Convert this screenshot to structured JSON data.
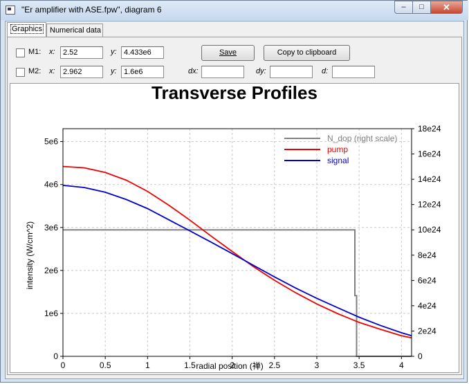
{
  "window": {
    "title": "\"Er amplifier with ASE.fpw\", diagram 6",
    "btn_min": "–",
    "btn_max": "□",
    "btn_close": "✕"
  },
  "tabs": [
    {
      "label": "Graphics"
    },
    {
      "label": "Numerical data"
    }
  ],
  "markers": {
    "m1": {
      "label": "M1:",
      "x_label": "x:",
      "x": "2.52",
      "y_label": "y:",
      "y": "4.433e6"
    },
    "m2": {
      "label": "M2:",
      "x_label": "x:",
      "x": "2.962",
      "y_label": "y:",
      "y": "1.6e6"
    },
    "dx_label": "dx:",
    "dy_label": "dy:",
    "d_label": "d:",
    "dx": "",
    "dy": "",
    "d": ""
  },
  "buttons": {
    "save": "Save",
    "copy": "Copy to clipboard"
  },
  "chart_data": {
    "type": "line",
    "title": "Transverse Profiles",
    "xlabel": "radial position (禅)",
    "ylabel": "intensity (W/cm^2)",
    "xlim": [
      0,
      4.12
    ],
    "ylim": [
      0,
      5300000.0
    ],
    "ylim_right": [
      0,
      1.8e+25
    ],
    "x_ticks": [
      "0",
      "0.5",
      "1",
      "1.5",
      "2",
      "2.5",
      "3",
      "3.5",
      "4"
    ],
    "x_tick_values": [
      0,
      0.5,
      1,
      1.5,
      2,
      2.5,
      3,
      3.5,
      4
    ],
    "y_ticks": [
      "0",
      "1e6",
      "2e6",
      "3e6",
      "4e6",
      "5e6"
    ],
    "y_tick_values": [
      0,
      1000000.0,
      2000000.0,
      3000000.0,
      4000000.0,
      5000000.0
    ],
    "y2_ticks": [
      "0",
      "2e24",
      "4e24",
      "6e24",
      "8e24",
      "10e24",
      "12e24",
      "14e24",
      "16e24",
      "18e24"
    ],
    "y2_tick_values": [
      0,
      2e+24,
      4e+24,
      6e+24,
      8e+24,
      1e+25,
      1.2e+25,
      1.4e+25,
      1.6e+25,
      1.8e+25
    ],
    "grid": true,
    "legend_position": "top-right",
    "series": [
      {
        "name": "N_dop (right scale)",
        "color": "#808080",
        "axis": "right",
        "x": [
          0,
          3.45,
          3.45,
          3.47,
          3.47,
          4.12
        ],
        "y": [
          1e+25,
          1e+25,
          4.8e+24,
          4.8e+24,
          0,
          0
        ]
      },
      {
        "name": "pump",
        "color": "#ee0000",
        "axis": "left",
        "x": [
          0,
          0.25,
          0.5,
          0.75,
          1,
          1.25,
          1.5,
          1.75,
          2,
          2.25,
          2.5,
          2.75,
          3,
          3.25,
          3.5,
          3.75,
          4,
          4.12
        ],
        "y": [
          4420000.0,
          4390000.0,
          4280000.0,
          4100000.0,
          3840000.0,
          3520000.0,
          3170000.0,
          2800000.0,
          2440000.0,
          2090000.0,
          1770000.0,
          1480000.0,
          1220000.0,
          990000.0,
          790000.0,
          630000.0,
          480000.0,
          430000.0
        ]
      },
      {
        "name": "signal",
        "color": "#0000cc",
        "axis": "left",
        "x": [
          0,
          0.25,
          0.5,
          0.75,
          1,
          1.25,
          1.5,
          1.75,
          2,
          2.25,
          2.5,
          2.75,
          3,
          3.25,
          3.5,
          3.75,
          4,
          4.12
        ],
        "y": [
          3980000.0,
          3930000.0,
          3820000.0,
          3650000.0,
          3440000.0,
          3180000.0,
          2920000.0,
          2660000.0,
          2390000.0,
          2120000.0,
          1850000.0,
          1590000.0,
          1350000.0,
          1130000.0,
          910000.0,
          720000.0,
          550000.0,
          480000.0
        ]
      }
    ]
  }
}
